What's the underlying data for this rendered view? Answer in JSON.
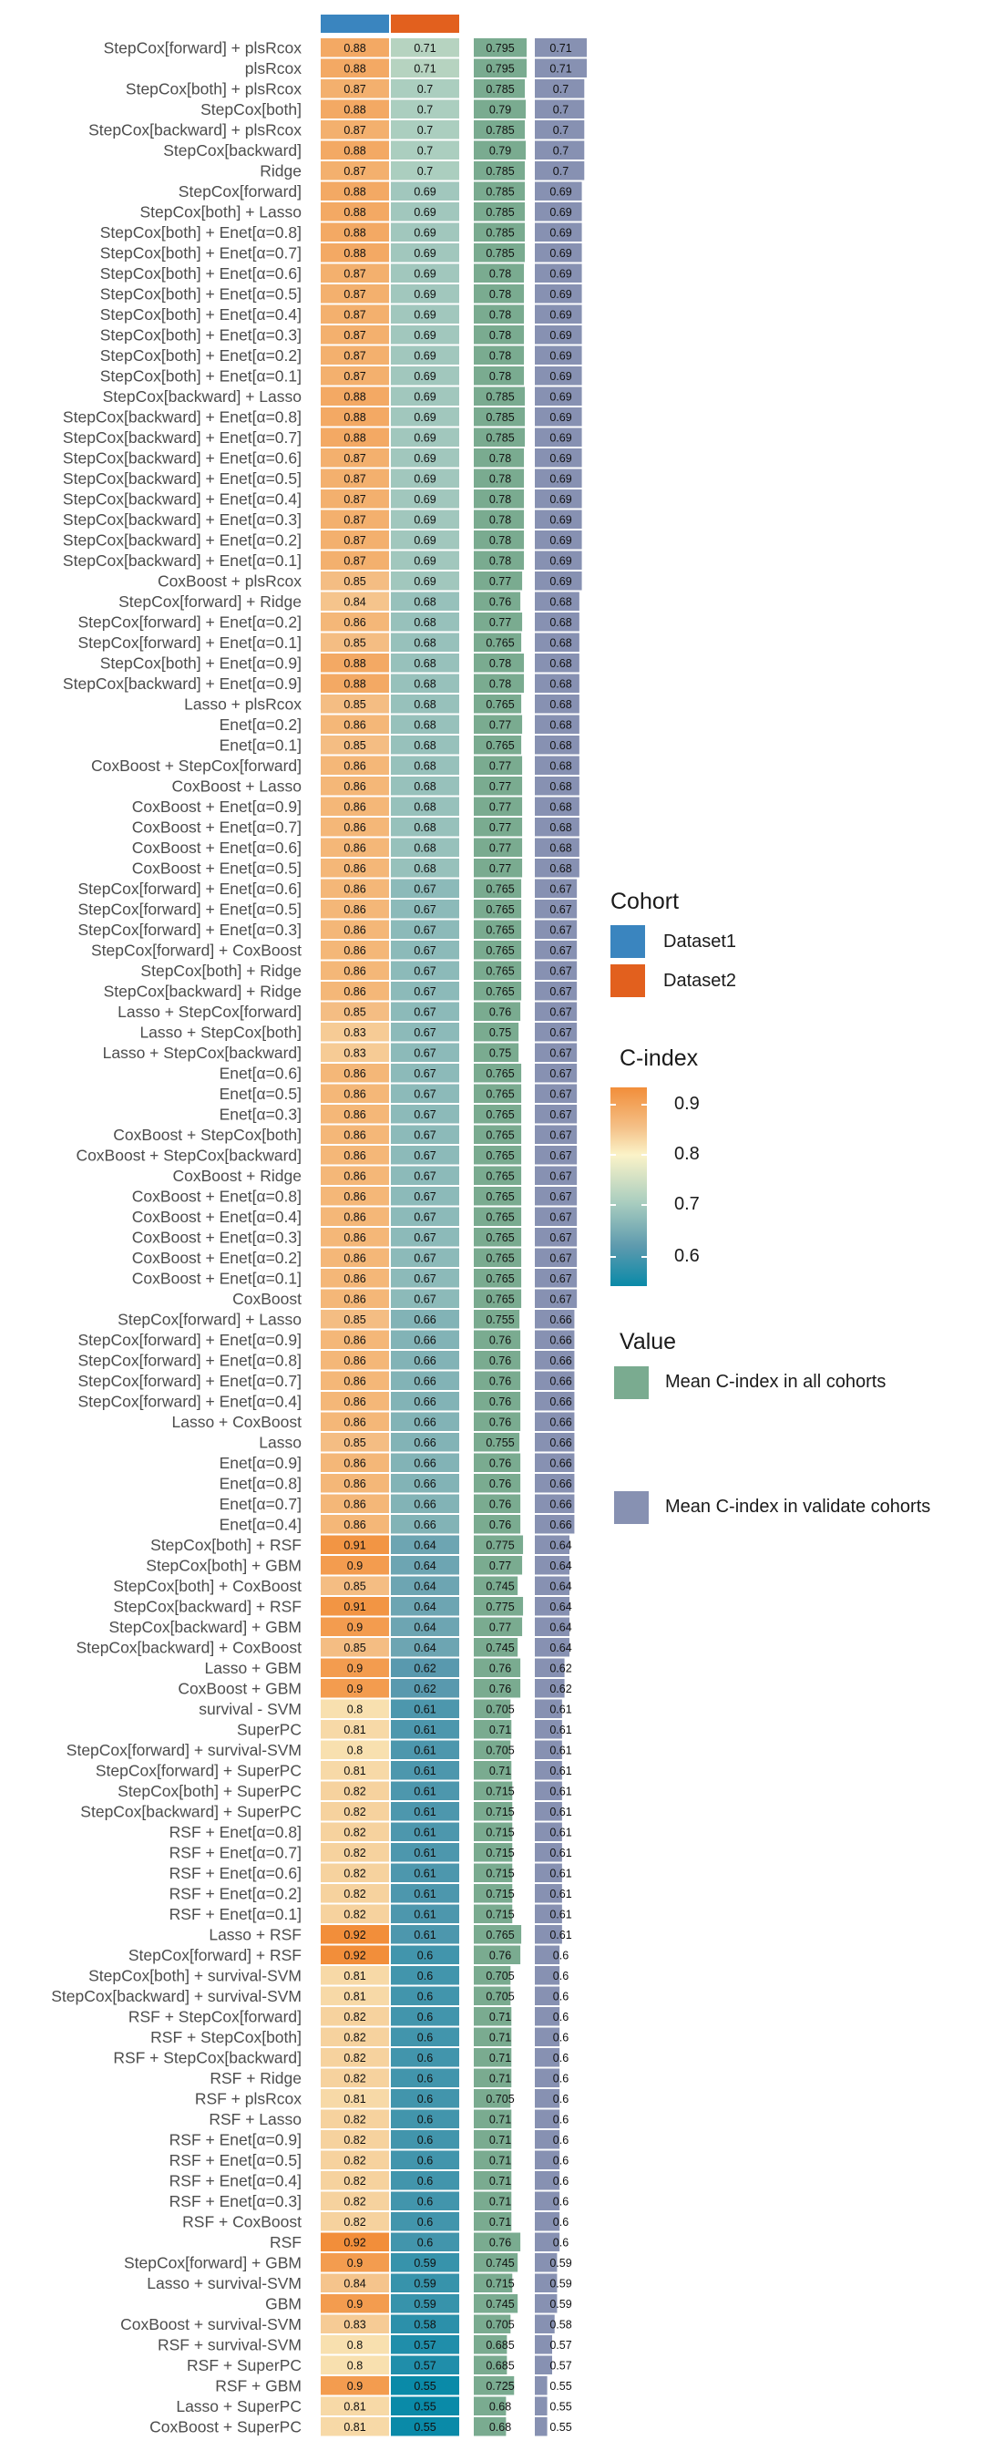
{
  "chart_data": {
    "type": "heatmap",
    "columns": [
      {
        "name": "Dataset1",
        "kind": "cohort"
      },
      {
        "name": "Dataset2",
        "kind": "cohort"
      },
      {
        "name": "Mean C-index in all cohorts",
        "kind": "mean_all"
      },
      {
        "name": "Mean C-index in validate cohorts",
        "kind": "mean_validate"
      }
    ],
    "rows": [
      [
        "StepCox[forward] + plsRcox",
        0.88,
        0.71,
        0.795,
        0.71
      ],
      [
        "plsRcox",
        0.88,
        0.71,
        0.795,
        0.71
      ],
      [
        "StepCox[both] + plsRcox",
        0.87,
        0.7,
        0.785,
        0.7
      ],
      [
        "StepCox[both]",
        0.88,
        0.7,
        0.79,
        0.7
      ],
      [
        "StepCox[backward] + plsRcox",
        0.87,
        0.7,
        0.785,
        0.7
      ],
      [
        "StepCox[backward]",
        0.88,
        0.7,
        0.79,
        0.7
      ],
      [
        "Ridge",
        0.87,
        0.7,
        0.785,
        0.7
      ],
      [
        "StepCox[forward]",
        0.88,
        0.69,
        0.785,
        0.69
      ],
      [
        "StepCox[both] + Lasso",
        0.88,
        0.69,
        0.785,
        0.69
      ],
      [
        "StepCox[both] + Enet[α=0.8]",
        0.88,
        0.69,
        0.785,
        0.69
      ],
      [
        "StepCox[both] + Enet[α=0.7]",
        0.88,
        0.69,
        0.785,
        0.69
      ],
      [
        "StepCox[both] + Enet[α=0.6]",
        0.87,
        0.69,
        0.78,
        0.69
      ],
      [
        "StepCox[both] + Enet[α=0.5]",
        0.87,
        0.69,
        0.78,
        0.69
      ],
      [
        "StepCox[both] + Enet[α=0.4]",
        0.87,
        0.69,
        0.78,
        0.69
      ],
      [
        "StepCox[both] + Enet[α=0.3]",
        0.87,
        0.69,
        0.78,
        0.69
      ],
      [
        "StepCox[both] + Enet[α=0.2]",
        0.87,
        0.69,
        0.78,
        0.69
      ],
      [
        "StepCox[both] + Enet[α=0.1]",
        0.87,
        0.69,
        0.78,
        0.69
      ],
      [
        "StepCox[backward] + Lasso",
        0.88,
        0.69,
        0.785,
        0.69
      ],
      [
        "StepCox[backward] + Enet[α=0.8]",
        0.88,
        0.69,
        0.785,
        0.69
      ],
      [
        "StepCox[backward] + Enet[α=0.7]",
        0.88,
        0.69,
        0.785,
        0.69
      ],
      [
        "StepCox[backward] + Enet[α=0.6]",
        0.87,
        0.69,
        0.78,
        0.69
      ],
      [
        "StepCox[backward] + Enet[α=0.5]",
        0.87,
        0.69,
        0.78,
        0.69
      ],
      [
        "StepCox[backward] + Enet[α=0.4]",
        0.87,
        0.69,
        0.78,
        0.69
      ],
      [
        "StepCox[backward] + Enet[α=0.3]",
        0.87,
        0.69,
        0.78,
        0.69
      ],
      [
        "StepCox[backward] + Enet[α=0.2]",
        0.87,
        0.69,
        0.78,
        0.69
      ],
      [
        "StepCox[backward] + Enet[α=0.1]",
        0.87,
        0.69,
        0.78,
        0.69
      ],
      [
        "CoxBoost + plsRcox",
        0.85,
        0.69,
        0.77,
        0.69
      ],
      [
        "StepCox[forward] + Ridge",
        0.84,
        0.68,
        0.76,
        0.68
      ],
      [
        "StepCox[forward] + Enet[α=0.2]",
        0.86,
        0.68,
        0.77,
        0.68
      ],
      [
        "StepCox[forward] + Enet[α=0.1]",
        0.85,
        0.68,
        0.765,
        0.68
      ],
      [
        "StepCox[both] + Enet[α=0.9]",
        0.88,
        0.68,
        0.78,
        0.68
      ],
      [
        "StepCox[backward] + Enet[α=0.9]",
        0.88,
        0.68,
        0.78,
        0.68
      ],
      [
        "Lasso + plsRcox",
        0.85,
        0.68,
        0.765,
        0.68
      ],
      [
        "Enet[α=0.2]",
        0.86,
        0.68,
        0.77,
        0.68
      ],
      [
        "Enet[α=0.1]",
        0.85,
        0.68,
        0.765,
        0.68
      ],
      [
        "CoxBoost + StepCox[forward]",
        0.86,
        0.68,
        0.77,
        0.68
      ],
      [
        "CoxBoost + Lasso",
        0.86,
        0.68,
        0.77,
        0.68
      ],
      [
        "CoxBoost + Enet[α=0.9]",
        0.86,
        0.68,
        0.77,
        0.68
      ],
      [
        "CoxBoost + Enet[α=0.7]",
        0.86,
        0.68,
        0.77,
        0.68
      ],
      [
        "CoxBoost + Enet[α=0.6]",
        0.86,
        0.68,
        0.77,
        0.68
      ],
      [
        "CoxBoost + Enet[α=0.5]",
        0.86,
        0.68,
        0.77,
        0.68
      ],
      [
        "StepCox[forward] + Enet[α=0.6]",
        0.86,
        0.67,
        0.765,
        0.67
      ],
      [
        "StepCox[forward] + Enet[α=0.5]",
        0.86,
        0.67,
        0.765,
        0.67
      ],
      [
        "StepCox[forward] + Enet[α=0.3]",
        0.86,
        0.67,
        0.765,
        0.67
      ],
      [
        "StepCox[forward] + CoxBoost",
        0.86,
        0.67,
        0.765,
        0.67
      ],
      [
        "StepCox[both] + Ridge",
        0.86,
        0.67,
        0.765,
        0.67
      ],
      [
        "StepCox[backward] + Ridge",
        0.86,
        0.67,
        0.765,
        0.67
      ],
      [
        "Lasso + StepCox[forward]",
        0.85,
        0.67,
        0.76,
        0.67
      ],
      [
        "Lasso + StepCox[both]",
        0.83,
        0.67,
        0.75,
        0.67
      ],
      [
        "Lasso + StepCox[backward]",
        0.83,
        0.67,
        0.75,
        0.67
      ],
      [
        "Enet[α=0.6]",
        0.86,
        0.67,
        0.765,
        0.67
      ],
      [
        "Enet[α=0.5]",
        0.86,
        0.67,
        0.765,
        0.67
      ],
      [
        "Enet[α=0.3]",
        0.86,
        0.67,
        0.765,
        0.67
      ],
      [
        "CoxBoost + StepCox[both]",
        0.86,
        0.67,
        0.765,
        0.67
      ],
      [
        "CoxBoost + StepCox[backward]",
        0.86,
        0.67,
        0.765,
        0.67
      ],
      [
        "CoxBoost + Ridge",
        0.86,
        0.67,
        0.765,
        0.67
      ],
      [
        "CoxBoost + Enet[α=0.8]",
        0.86,
        0.67,
        0.765,
        0.67
      ],
      [
        "CoxBoost + Enet[α=0.4]",
        0.86,
        0.67,
        0.765,
        0.67
      ],
      [
        "CoxBoost + Enet[α=0.3]",
        0.86,
        0.67,
        0.765,
        0.67
      ],
      [
        "CoxBoost + Enet[α=0.2]",
        0.86,
        0.67,
        0.765,
        0.67
      ],
      [
        "CoxBoost + Enet[α=0.1]",
        0.86,
        0.67,
        0.765,
        0.67
      ],
      [
        "CoxBoost",
        0.86,
        0.67,
        0.765,
        0.67
      ],
      [
        "StepCox[forward] + Lasso",
        0.85,
        0.66,
        0.755,
        0.66
      ],
      [
        "StepCox[forward] + Enet[α=0.9]",
        0.86,
        0.66,
        0.76,
        0.66
      ],
      [
        "StepCox[forward] + Enet[α=0.8]",
        0.86,
        0.66,
        0.76,
        0.66
      ],
      [
        "StepCox[forward] + Enet[α=0.7]",
        0.86,
        0.66,
        0.76,
        0.66
      ],
      [
        "StepCox[forward] + Enet[α=0.4]",
        0.86,
        0.66,
        0.76,
        0.66
      ],
      [
        "Lasso + CoxBoost",
        0.86,
        0.66,
        0.76,
        0.66
      ],
      [
        "Lasso",
        0.85,
        0.66,
        0.755,
        0.66
      ],
      [
        "Enet[α=0.9]",
        0.86,
        0.66,
        0.76,
        0.66
      ],
      [
        "Enet[α=0.8]",
        0.86,
        0.66,
        0.76,
        0.66
      ],
      [
        "Enet[α=0.7]",
        0.86,
        0.66,
        0.76,
        0.66
      ],
      [
        "Enet[α=0.4]",
        0.86,
        0.66,
        0.76,
        0.66
      ],
      [
        "StepCox[both] + RSF",
        0.91,
        0.64,
        0.775,
        0.64
      ],
      [
        "StepCox[both] + GBM",
        0.9,
        0.64,
        0.77,
        0.64
      ],
      [
        "StepCox[both] + CoxBoost",
        0.85,
        0.64,
        0.745,
        0.64
      ],
      [
        "StepCox[backward] + RSF",
        0.91,
        0.64,
        0.775,
        0.64
      ],
      [
        "StepCox[backward] + GBM",
        0.9,
        0.64,
        0.77,
        0.64
      ],
      [
        "StepCox[backward] + CoxBoost",
        0.85,
        0.64,
        0.745,
        0.64
      ],
      [
        "Lasso + GBM",
        0.9,
        0.62,
        0.76,
        0.62
      ],
      [
        "CoxBoost + GBM",
        0.9,
        0.62,
        0.76,
        0.62
      ],
      [
        "survival - SVM",
        0.8,
        0.61,
        0.705,
        0.61
      ],
      [
        "SuperPC",
        0.81,
        0.61,
        0.71,
        0.61
      ],
      [
        "StepCox[forward] + survival-SVM",
        0.8,
        0.61,
        0.705,
        0.61
      ],
      [
        "StepCox[forward] + SuperPC",
        0.81,
        0.61,
        0.71,
        0.61
      ],
      [
        "StepCox[both] + SuperPC",
        0.82,
        0.61,
        0.715,
        0.61
      ],
      [
        "StepCox[backward] + SuperPC",
        0.82,
        0.61,
        0.715,
        0.61
      ],
      [
        "RSF + Enet[α=0.8]",
        0.82,
        0.61,
        0.715,
        0.61
      ],
      [
        "RSF + Enet[α=0.7]",
        0.82,
        0.61,
        0.715,
        0.61
      ],
      [
        "RSF + Enet[α=0.6]",
        0.82,
        0.61,
        0.715,
        0.61
      ],
      [
        "RSF + Enet[α=0.2]",
        0.82,
        0.61,
        0.715,
        0.61
      ],
      [
        "RSF + Enet[α=0.1]",
        0.82,
        0.61,
        0.715,
        0.61
      ],
      [
        "Lasso + RSF",
        0.92,
        0.61,
        0.765,
        0.61
      ],
      [
        "StepCox[forward] + RSF",
        0.92,
        0.6,
        0.76,
        0.6
      ],
      [
        "StepCox[both] + survival-SVM",
        0.81,
        0.6,
        0.705,
        0.6
      ],
      [
        "StepCox[backward] + survival-SVM",
        0.81,
        0.6,
        0.705,
        0.6
      ],
      [
        "RSF + StepCox[forward]",
        0.82,
        0.6,
        0.71,
        0.6
      ],
      [
        "RSF + StepCox[both]",
        0.82,
        0.6,
        0.71,
        0.6
      ],
      [
        "RSF + StepCox[backward]",
        0.82,
        0.6,
        0.71,
        0.6
      ],
      [
        "RSF + Ridge",
        0.82,
        0.6,
        0.71,
        0.6
      ],
      [
        "RSF + plsRcox",
        0.81,
        0.6,
        0.705,
        0.6
      ],
      [
        "RSF + Lasso",
        0.82,
        0.6,
        0.71,
        0.6
      ],
      [
        "RSF + Enet[α=0.9]",
        0.82,
        0.6,
        0.71,
        0.6
      ],
      [
        "RSF + Enet[α=0.5]",
        0.82,
        0.6,
        0.71,
        0.6
      ],
      [
        "RSF + Enet[α=0.4]",
        0.82,
        0.6,
        0.71,
        0.6
      ],
      [
        "RSF + Enet[α=0.3]",
        0.82,
        0.6,
        0.71,
        0.6
      ],
      [
        "RSF + CoxBoost",
        0.82,
        0.6,
        0.71,
        0.6
      ],
      [
        "RSF",
        0.92,
        0.6,
        0.76,
        0.6
      ],
      [
        "StepCox[forward] + GBM",
        0.9,
        0.59,
        0.745,
        0.59
      ],
      [
        "Lasso + survival-SVM",
        0.84,
        0.59,
        0.715,
        0.59
      ],
      [
        "GBM",
        0.9,
        0.59,
        0.745,
        0.59
      ],
      [
        "CoxBoost + survival-SVM",
        0.83,
        0.58,
        0.705,
        0.58
      ],
      [
        "RSF + survival-SVM",
        0.8,
        0.57,
        0.685,
        0.57
      ],
      [
        "RSF + SuperPC",
        0.8,
        0.57,
        0.685,
        0.57
      ],
      [
        "RSF + GBM",
        0.9,
        0.55,
        0.725,
        0.55
      ],
      [
        "Lasso + SuperPC",
        0.81,
        0.55,
        0.68,
        0.55
      ],
      [
        "CoxBoost + SuperPC",
        0.81,
        0.55,
        0.68,
        0.55
      ]
    ],
    "color_scale": {
      "title": "C-index",
      "ticks": [
        0.9,
        0.8,
        0.7,
        0.6
      ],
      "domain": [
        0.55,
        0.92
      ],
      "stops": [
        "#0a8aa8",
        "#5d9aae",
        "#a9cdbf",
        "#fbf3c8",
        "#f4c087",
        "#f28e3a"
      ]
    },
    "header_colors": {
      "Dataset1": "#3a85bf",
      "Dataset2": "#e2601e"
    },
    "bar_colors": {
      "mean_all": "#7aab90",
      "mean_validate": "#8791b2"
    }
  },
  "legend": {
    "cohort_title": "Cohort",
    "cohort_items": [
      "Dataset1",
      "Dataset2"
    ],
    "cindex_title": "C-index",
    "cindex_ticks": [
      "0.9",
      "0.8",
      "0.7",
      "0.6"
    ],
    "value_title": "Value",
    "value_items": [
      "Mean C-index in all cohorts",
      "Mean C-index in validate cohorts"
    ]
  }
}
